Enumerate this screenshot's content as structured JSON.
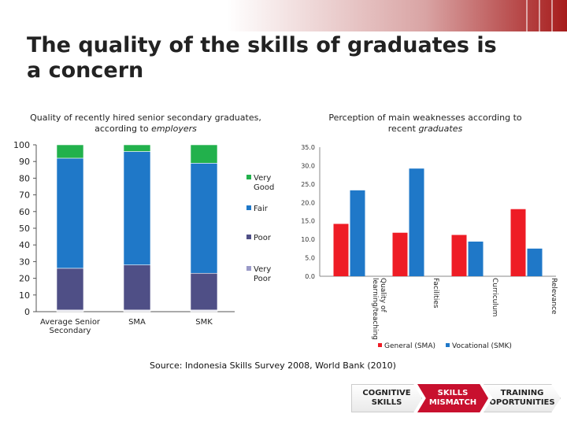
{
  "title": "The quality of the skills of graduates is a concern",
  "left_subtitle_line1": "Quality of recently hired senior secondary graduates,",
  "left_subtitle_line2_prefix": "according to ",
  "left_subtitle_line2_em": "employers",
  "right_subtitle_line1": "Perception of main weaknesses according to",
  "right_subtitle_line2_prefix": "recent ",
  "right_subtitle_line2_em": "graduates",
  "source": "Source: Indonesia Skills Survey 2008, World Bank (2010)",
  "flow": [
    {
      "label_1": "COGNITIVE",
      "label_2": "SKILLS",
      "color": "#ffffff",
      "text_color": "#222222"
    },
    {
      "label_1": "SKILLS",
      "label_2": "MISMATCH",
      "color": "#c8102e",
      "text_color": "#ffffff"
    },
    {
      "label_1": "TRAINING",
      "label_2": "OPORTUNITIES",
      "color": "#ffffff",
      "text_color": "#222222"
    }
  ],
  "colors": {
    "accent": "#a61b1b"
  },
  "chart_data": [
    {
      "type": "bar",
      "stacked": true,
      "categories": [
        "Average Senior Secondary",
        "SMA",
        "SMK"
      ],
      "series": [
        {
          "name": "Very Poor",
          "values": [
            1,
            1,
            1
          ],
          "color": "#e8e8f0"
        },
        {
          "name": "Poor",
          "values": [
            25,
            27,
            22
          ],
          "color": "#4f4f86"
        },
        {
          "name": "Fair",
          "values": [
            66,
            68,
            66
          ],
          "color": "#1f78c8"
        },
        {
          "name": "Very Good",
          "values": [
            8,
            4,
            11
          ],
          "color": "#22b14c"
        }
      ],
      "ylim": [
        0,
        100
      ],
      "yticks": [
        "0",
        "10",
        "20",
        "30",
        "40",
        "50",
        "60",
        "70",
        "80",
        "90",
        "100"
      ],
      "legend": [
        "Very Good",
        "Fair",
        "Poor",
        "Very Poor"
      ],
      "legend_position": "right"
    },
    {
      "type": "bar",
      "categories": [
        "Quality of learning/teaching",
        "Facilities",
        "Curriculum",
        "Relevance"
      ],
      "series": [
        {
          "name": "General (SMA)",
          "values": [
            14.2,
            11.8,
            11.2,
            18.2
          ],
          "color": "#ee1c25"
        },
        {
          "name": "Vocational (SMK)",
          "values": [
            23.3,
            29.2,
            9.4,
            7.5
          ],
          "color": "#1f78c8"
        }
      ],
      "ylim": [
        0,
        35
      ],
      "yticks": [
        "0.0",
        "5.0",
        "10.0",
        "15.0",
        "20.0",
        "25.0",
        "30.0",
        "35.0"
      ],
      "legend_position": "bottom"
    }
  ]
}
